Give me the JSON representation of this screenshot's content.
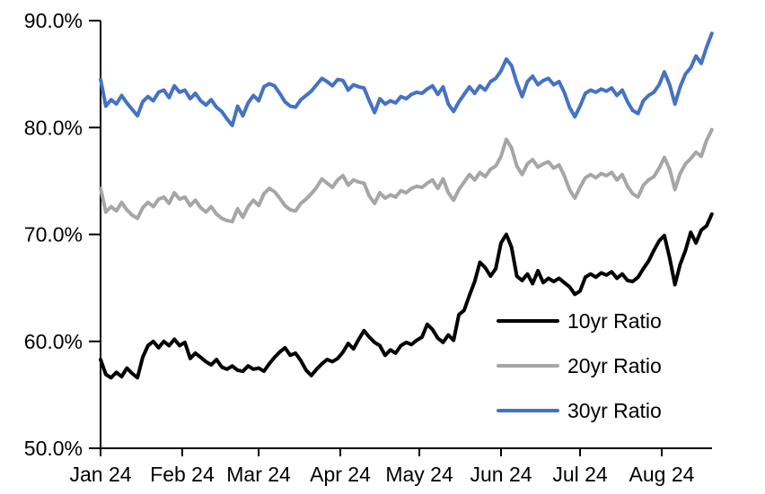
{
  "chart_data": {
    "type": "line",
    "title": "",
    "grid": false,
    "legend_position": "inside-lower-right",
    "x_axis": {
      "label": "",
      "tick_labels": [
        "Jan 24",
        "Feb 24",
        "Mar 24",
        "Apr 24",
        "May 24",
        "Jun 24",
        "Jul 24",
        "Aug 24"
      ],
      "tick_days": [
        0,
        31,
        60,
        91,
        121,
        152,
        182,
        213
      ],
      "domain_days": [
        0,
        232
      ]
    },
    "y_axis": {
      "label": "",
      "unit": "%",
      "tick_labels": [
        "50.0%",
        "60.0%",
        "70.0%",
        "80.0%",
        "90.0%"
      ],
      "tick_values": [
        50,
        60,
        70,
        80,
        90
      ],
      "range": [
        50,
        90
      ]
    },
    "sample_start_day": 0,
    "sample_step_days": 2,
    "series": [
      {
        "name": "10yr Ratio",
        "slug": "10yr-ratio",
        "color": "#000000",
        "values": [
          58.3,
          56.9,
          56.6,
          57.1,
          56.7,
          57.5,
          57.0,
          56.6,
          58.5,
          59.6,
          60.0,
          59.4,
          60.0,
          59.6,
          60.2,
          59.6,
          59.9,
          58.4,
          58.9,
          58.5,
          58.1,
          57.8,
          58.3,
          57.6,
          57.4,
          57.7,
          57.3,
          57.2,
          57.7,
          57.4,
          57.5,
          57.2,
          57.9,
          58.5,
          59.0,
          59.4,
          58.7,
          58.9,
          58.2,
          57.3,
          56.8,
          57.4,
          57.9,
          58.3,
          58.1,
          58.4,
          59.0,
          59.8,
          59.3,
          60.2,
          61.0,
          60.4,
          59.9,
          59.6,
          58.7,
          59.2,
          58.9,
          59.6,
          59.9,
          59.7,
          60.1,
          60.4,
          61.6,
          61.1,
          60.3,
          59.9,
          60.6,
          60.1,
          62.5,
          62.9,
          64.3,
          65.6,
          67.4,
          66.9,
          66.1,
          66.8,
          69.2,
          70.0,
          68.8,
          66.1,
          65.7,
          66.3,
          65.4,
          66.6,
          65.5,
          65.9,
          65.6,
          65.9,
          65.5,
          65.1,
          64.4,
          64.7,
          66.0,
          66.3,
          66.0,
          66.4,
          66.2,
          66.5,
          65.9,
          66.3,
          65.7,
          65.6,
          66.0,
          66.8,
          67.5,
          68.5,
          69.4,
          69.9,
          67.8,
          65.3,
          67.2,
          68.5,
          70.2,
          69.2,
          70.4,
          70.8,
          71.9
        ]
      },
      {
        "name": "20yr Ratio",
        "slug": "20yr-ratio",
        "color": "#A6A6A6",
        "values": [
          74.3,
          72.1,
          72.6,
          72.2,
          73.0,
          72.3,
          71.8,
          71.5,
          72.5,
          73.0,
          72.6,
          73.3,
          73.5,
          72.9,
          73.9,
          73.3,
          73.5,
          72.7,
          73.2,
          72.5,
          72.1,
          72.6,
          71.9,
          71.5,
          71.3,
          71.2,
          72.4,
          71.6,
          72.6,
          73.2,
          72.7,
          73.8,
          74.3,
          74.0,
          73.4,
          72.7,
          72.3,
          72.2,
          72.9,
          73.3,
          73.8,
          74.4,
          75.2,
          74.8,
          74.4,
          75.1,
          75.5,
          74.6,
          75.1,
          74.9,
          74.8,
          73.6,
          72.9,
          73.9,
          73.4,
          73.7,
          73.5,
          74.1,
          73.9,
          74.3,
          74.5,
          74.4,
          74.8,
          75.1,
          74.3,
          75.2,
          73.9,
          73.2,
          74.2,
          74.9,
          75.6,
          75.1,
          75.8,
          75.4,
          76.1,
          76.4,
          77.3,
          78.9,
          78.1,
          76.4,
          75.6,
          76.6,
          77.0,
          76.3,
          76.6,
          76.8,
          76.2,
          76.5,
          75.5,
          74.2,
          73.4,
          74.4,
          75.3,
          75.6,
          75.3,
          75.7,
          75.5,
          75.8,
          75.1,
          75.6,
          74.5,
          73.8,
          73.5,
          74.6,
          75.1,
          75.4,
          76.2,
          77.2,
          76.1,
          74.2,
          75.7,
          76.6,
          77.1,
          77.7,
          77.3,
          78.8,
          79.8
        ]
      },
      {
        "name": "30yr Ratio",
        "slug": "30yr-ratio",
        "color": "#4472C4",
        "values": [
          84.5,
          82.0,
          82.6,
          82.2,
          83.0,
          82.3,
          81.7,
          81.1,
          82.4,
          82.9,
          82.5,
          83.3,
          83.5,
          82.8,
          83.9,
          83.3,
          83.5,
          82.7,
          83.2,
          82.5,
          82.1,
          82.6,
          81.9,
          81.5,
          80.8,
          80.2,
          82.0,
          81.1,
          82.3,
          83.0,
          82.5,
          83.8,
          84.1,
          83.9,
          83.2,
          82.4,
          82.0,
          81.9,
          82.6,
          83.0,
          83.4,
          84.0,
          84.6,
          84.3,
          83.9,
          84.5,
          84.4,
          83.5,
          84.0,
          83.8,
          83.7,
          82.5,
          81.4,
          82.7,
          82.2,
          82.5,
          82.3,
          82.9,
          82.7,
          83.1,
          83.3,
          83.2,
          83.6,
          83.9,
          83.1,
          83.8,
          82.2,
          81.5,
          82.4,
          83.1,
          83.8,
          83.2,
          83.9,
          83.5,
          84.3,
          84.6,
          85.3,
          86.4,
          85.8,
          84.2,
          82.9,
          84.3,
          84.8,
          84.0,
          84.4,
          84.6,
          84.0,
          84.3,
          83.3,
          81.9,
          81.0,
          82.0,
          83.2,
          83.5,
          83.3,
          83.6,
          83.4,
          83.7,
          83.0,
          83.5,
          82.4,
          81.6,
          81.3,
          82.5,
          83.0,
          83.3,
          84.0,
          85.2,
          84.0,
          82.2,
          83.8,
          85.0,
          85.6,
          86.7,
          86.0,
          87.5,
          88.8
        ]
      }
    ]
  }
}
